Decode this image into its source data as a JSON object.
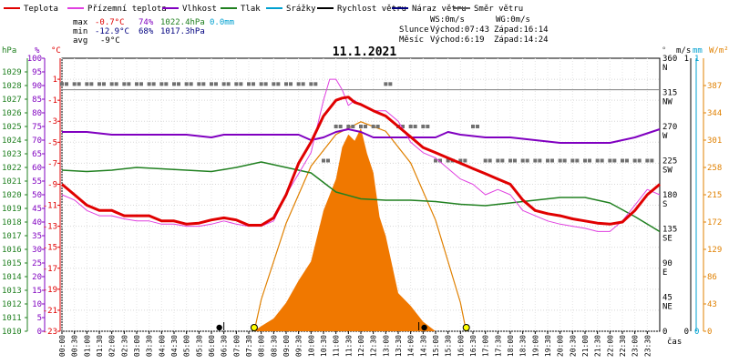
{
  "legend": [
    {
      "label": "Teplota",
      "color": "#e00000"
    },
    {
      "label": "Přízemní teplota",
      "color": "#e040e0"
    },
    {
      "label": "Vlhkost",
      "color": "#8000c0"
    },
    {
      "label": "Tlak",
      "color": "#208020"
    },
    {
      "label": "Srážky",
      "color": "#00a0d0"
    },
    {
      "label": "Rychlost větru",
      "color": "#000000"
    },
    {
      "label": "Náraz větru",
      "color": "#000080"
    },
    {
      "label": "Směr větru",
      "color": "#606060"
    }
  ],
  "stats": {
    "max_label": "max",
    "max_temp": "-0.7°C",
    "max_hum": "74%",
    "max_press": "1022.4hPa",
    "max_rain": "0.0mm",
    "min_label": "min",
    "min_temp": "-12.9°C",
    "min_hum": "68%",
    "min_press": "1017.3hPa",
    "avg_label": "avg",
    "avg_temp": "-9°C",
    "ws": "WS:0m/s",
    "wg": "WG:0m/s",
    "sun_label": "Slunce",
    "sunrise": "Východ:07:43",
    "sunset": "Západ:16:14",
    "moon_label": "Měsíc",
    "moonrise": "Východ:6:19",
    "moonset": "Západ:14:24"
  },
  "chart_data": {
    "type": "line",
    "title": "11.1.2021",
    "xlabel": "čas",
    "x_ticks": [
      "00:00",
      "00:30",
      "01:00",
      "01:30",
      "02:00",
      "02:30",
      "03:00",
      "03:30",
      "04:00",
      "04:30",
      "05:00",
      "05:30",
      "06:00",
      "06:30",
      "07:00",
      "07:30",
      "08:00",
      "08:30",
      "09:00",
      "09:30",
      "10:00",
      "10:30",
      "11:00",
      "11:30",
      "12:00",
      "12:30",
      "13:00",
      "13:30",
      "14:00",
      "14:30",
      "15:00",
      "15:30",
      "16:00",
      "16:30",
      "17:00",
      "17:30",
      "18:00",
      "18:30",
      "19:00",
      "19:30",
      "20:00",
      "20:30",
      "21:00",
      "21:30",
      "22:00",
      "22:30",
      "23:00",
      "23:30"
    ],
    "axes": {
      "hPa": {
        "label": "hPa",
        "range": [
          1010,
          1030
        ],
        "ticks": [
          1010,
          1011,
          1012,
          1013,
          1014,
          1015,
          1016,
          1017,
          1018,
          1019,
          1020,
          1021,
          1022,
          1023,
          1024,
          1025,
          1026,
          1027,
          1028,
          1029
        ]
      },
      "pct": {
        "label": "%",
        "range": [
          0,
          100
        ],
        "ticks": [
          0,
          5,
          10,
          15,
          20,
          25,
          30,
          35,
          40,
          45,
          50,
          55,
          60,
          65,
          70,
          75,
          80,
          85,
          90,
          95,
          100
        ]
      },
      "degC": {
        "label": "°C",
        "range": [
          -23,
          3
        ],
        "ticks": [
          1,
          -1,
          -3,
          -5,
          -7,
          -9,
          -11,
          -13,
          -15,
          -17,
          -19,
          -21,
          -23
        ]
      },
      "dir": {
        "label": "°",
        "range": [
          0,
          360
        ],
        "ticks": [
          0,
          45,
          90,
          135,
          180,
          225,
          270,
          315,
          360
        ],
        "tick_labels": [
          "0",
          "45\nNE",
          "90\nE",
          "135\nSE",
          "180\nS",
          "225\nSW",
          "270\nW",
          "315\nNW",
          "360\nN"
        ]
      },
      "ms": {
        "label": "m/s",
        "range": [
          0,
          1
        ],
        "ticks": [
          0,
          1
        ]
      },
      "mm": {
        "label": "mm",
        "range": [
          0,
          1
        ],
        "ticks": [
          0,
          1
        ]
      },
      "wm2": {
        "label": "W/m²",
        "range": [
          0,
          430
        ],
        "ticks": [
          0,
          43,
          86,
          129,
          172,
          215,
          258,
          301,
          344,
          387
        ]
      }
    },
    "series": [
      {
        "name": "Teplota",
        "axis": "degC",
        "x": [
          0,
          0.5,
          1,
          1.5,
          2,
          2.5,
          3,
          3.5,
          4,
          4.5,
          5,
          5.5,
          6,
          6.5,
          7,
          7.5,
          8,
          8.5,
          9,
          9.5,
          10,
          10.5,
          11,
          11.25,
          11.5,
          11.75,
          12,
          12.5,
          13,
          13.5,
          14,
          14.5,
          15,
          15.5,
          16,
          16.5,
          17,
          17.5,
          18,
          18.5,
          19,
          19.5,
          20,
          20.5,
          21,
          21.5,
          22,
          22.5,
          23,
          23.5,
          24
        ],
        "y": [
          -9,
          -10,
          -11,
          -11.5,
          -11.5,
          -12,
          -12,
          -12,
          -12.5,
          -12.5,
          -12.8,
          -12.7,
          -12.4,
          -12.2,
          -12.4,
          -12.9,
          -12.9,
          -12.2,
          -10,
          -7,
          -5,
          -2.5,
          -1,
          -0.8,
          -0.7,
          -1.2,
          -1.4,
          -2,
          -2.5,
          -3.5,
          -4.5,
          -5.5,
          -6,
          -6.5,
          -7,
          -7.5,
          -8,
          -8.5,
          -9,
          -10.5,
          -11.5,
          -11.8,
          -12,
          -12.3,
          -12.5,
          -12.7,
          -12.8,
          -12.6,
          -11.5,
          -10,
          -9
        ]
      },
      {
        "name": "Přízemní teplota",
        "axis": "degC",
        "x": [
          0,
          0.5,
          1,
          1.5,
          2,
          2.5,
          3,
          3.5,
          4,
          4.5,
          5,
          5.5,
          6,
          6.5,
          7,
          7.5,
          8,
          8.5,
          9,
          9.5,
          10,
          10.5,
          10.75,
          11,
          11.25,
          11.5,
          11.75,
          12,
          12.5,
          13,
          13.5,
          14,
          14.5,
          15,
          15.5,
          16,
          16.5,
          17,
          17.5,
          18,
          18.5,
          19,
          19.5,
          20,
          20.5,
          21,
          21.5,
          22,
          22.5,
          23,
          23.5,
          24
        ],
        "y": [
          -10,
          -10.5,
          -11.5,
          -12,
          -12,
          -12.3,
          -12.5,
          -12.5,
          -12.8,
          -12.8,
          -13,
          -13,
          -12.8,
          -12.5,
          -12.8,
          -13,
          -13,
          -12.5,
          -10,
          -8,
          -6,
          -1,
          1,
          1,
          0,
          -1.5,
          -1,
          -1.5,
          -2,
          -2,
          -3,
          -5,
          -6,
          -6.5,
          -7.5,
          -8.5,
          -9,
          -10,
          -9.5,
          -10,
          -11.5,
          -12,
          -12.5,
          -12.8,
          -13,
          -13.2,
          -13.5,
          -13.5,
          -12.5,
          -11,
          -9.5,
          -10
        ]
      },
      {
        "name": "Vlhkost",
        "axis": "pct",
        "x": [
          0,
          1,
          2,
          3,
          4,
          5,
          6,
          6.5,
          7,
          8,
          9,
          9.5,
          10,
          10.5,
          11,
          11.5,
          12,
          12.5,
          13,
          14,
          15,
          15.5,
          16,
          17,
          18,
          19,
          20,
          21,
          22,
          23,
          24
        ],
        "y": [
          73,
          73,
          72,
          72,
          72,
          72,
          71,
          72,
          72,
          72,
          72,
          72,
          70,
          71,
          73,
          74,
          73,
          71,
          71,
          71,
          71,
          73,
          72,
          71,
          71,
          70,
          69,
          69,
          69,
          71,
          74
        ]
      },
      {
        "name": "Tlak",
        "axis": "hPa",
        "x": [
          0,
          1,
          2,
          3,
          4,
          5,
          6,
          7,
          8,
          9,
          10,
          11,
          12,
          13,
          14,
          15,
          16,
          17,
          18,
          19,
          20,
          21,
          22,
          23,
          24
        ],
        "y": [
          1021.8,
          1021.7,
          1021.8,
          1022.0,
          1021.9,
          1021.8,
          1021.7,
          1022.0,
          1022.4,
          1022.0,
          1021.6,
          1020.2,
          1019.7,
          1019.6,
          1019.6,
          1019.5,
          1019.3,
          1019.2,
          1019.4,
          1019.6,
          1019.8,
          1019.8,
          1019.4,
          1018.4,
          1017.3
        ]
      },
      {
        "name": "Směr větru",
        "axis": "dir",
        "marker": "dash",
        "x": [
          0,
          0.5,
          1,
          1.5,
          2,
          2.5,
          3,
          3.5,
          4,
          4.5,
          5,
          5.5,
          6,
          6.5,
          7,
          7.5,
          8,
          8.5,
          9,
          9.5,
          10,
          10.5,
          11,
          11.5,
          12,
          12.5,
          13,
          13.5,
          14,
          14.5,
          15,
          15.5,
          16,
          16.5,
          17,
          17.5,
          18,
          18.5,
          19,
          19.5,
          20,
          20.5,
          21,
          21.5,
          22,
          22.5,
          23,
          23.5
        ],
        "y": [
          326,
          326,
          326,
          326,
          326,
          326,
          326,
          326,
          326,
          326,
          326,
          326,
          326,
          326,
          326,
          326,
          326,
          326,
          326,
          326,
          326,
          225,
          270,
          270,
          270,
          270,
          326,
          270,
          270,
          270,
          225,
          225,
          225,
          270,
          225,
          225,
          225,
          225,
          225,
          225,
          225,
          225,
          225,
          225,
          225,
          225,
          225,
          225
        ]
      },
      {
        "name": "Slunce",
        "axis": "wm2",
        "type": "area",
        "x": [
          7.7,
          8,
          8.5,
          9,
          9.5,
          10,
          10.5,
          11,
          11.25,
          11.5,
          11.75,
          12,
          12.25,
          12.5,
          12.75,
          13,
          13.5,
          14,
          14.5,
          15
        ],
        "y": [
          0,
          8,
          20,
          45,
          80,
          110,
          190,
          240,
          290,
          310,
          300,
          320,
          280,
          250,
          180,
          150,
          60,
          40,
          15,
          0
        ]
      },
      {
        "name": "Sluneční dráha",
        "axis": "wm2",
        "type": "line",
        "x": [
          7.72,
          8,
          9,
          10,
          11,
          12,
          13,
          14,
          15,
          16,
          16.23
        ],
        "y": [
          0,
          50,
          170,
          260,
          310,
          330,
          315,
          265,
          175,
          45,
          0
        ]
      }
    ]
  }
}
